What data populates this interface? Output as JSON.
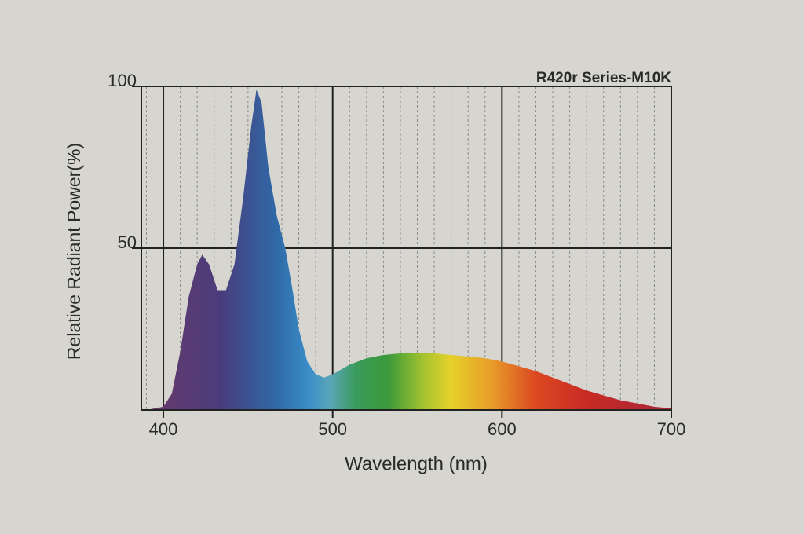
{
  "chart_data": {
    "type": "area",
    "title": "R420r Series-M10K",
    "x_label": "Wavelength (nm)",
    "y_label": "Relative Radiant Power(%)",
    "x": [
      390,
      400,
      405,
      410,
      415,
      420,
      423,
      427,
      432,
      437,
      442,
      447,
      452,
      455,
      458,
      462,
      467,
      472,
      476,
      480,
      485,
      490,
      495,
      500,
      510,
      520,
      530,
      540,
      550,
      560,
      570,
      580,
      590,
      600,
      610,
      620,
      630,
      640,
      650,
      660,
      670,
      680,
      690,
      700
    ],
    "values": [
      0,
      1,
      5,
      18,
      35,
      45,
      48,
      45,
      37,
      37,
      45,
      65,
      88,
      99,
      95,
      75,
      60,
      50,
      38,
      25,
      15,
      11,
      10,
      11,
      14,
      16,
      17,
      17.5,
      17.5,
      17.5,
      17,
      16.5,
      16,
      15,
      13.5,
      12,
      10,
      8,
      6,
      4.5,
      3,
      2,
      1,
      0.5
    ],
    "xlim": [
      387,
      700
    ],
    "ylim": [
      0,
      100
    ],
    "xticks": [
      400,
      500,
      600,
      700
    ],
    "yticks": [
      50,
      100
    ],
    "minor_xticks": [
      390,
      410,
      420,
      430,
      440,
      450,
      460,
      470,
      480,
      490,
      510,
      520,
      530,
      540,
      550,
      560,
      570,
      580,
      590,
      610,
      620,
      630,
      640,
      650,
      660,
      670,
      680,
      690
    ],
    "grid": true
  }
}
